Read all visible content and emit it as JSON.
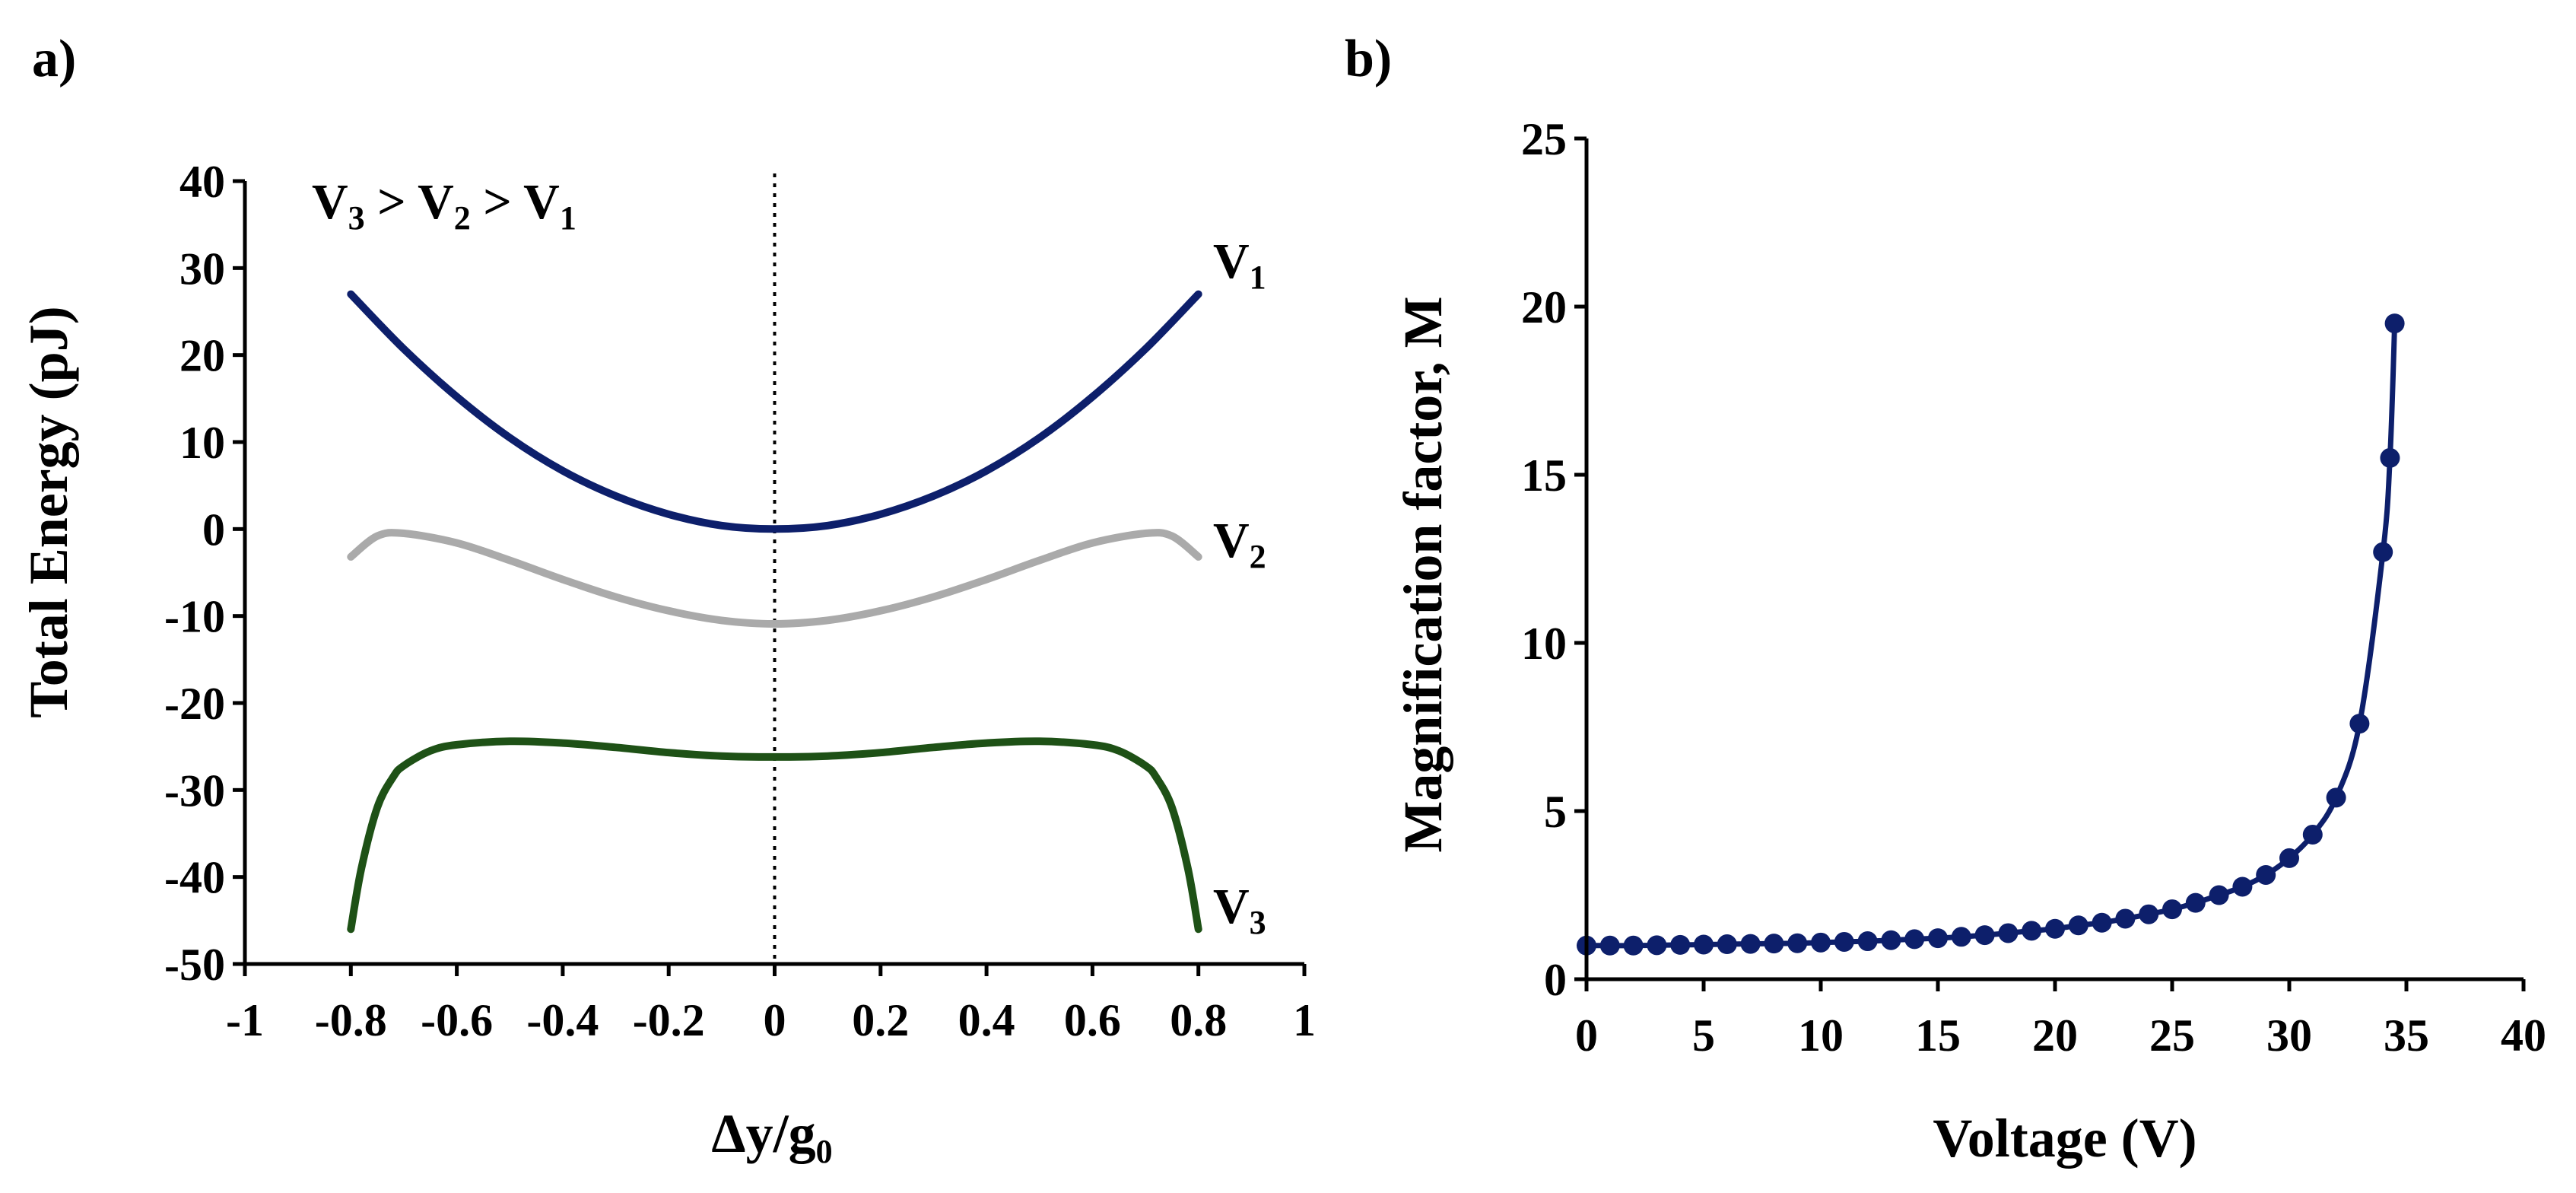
{
  "chart_data": [
    {
      "panel": "a)",
      "type": "line",
      "xlabel": "Δy/g",
      "xlabel_sub": "0",
      "ylabel": "Total Energy (pJ)",
      "xlim": [
        -1,
        1
      ],
      "ylim": [
        -50,
        40
      ],
      "x_ticks": [
        -1,
        -0.8,
        -0.6,
        -0.4,
        -0.2,
        0,
        0.2,
        0.4,
        0.6,
        0.8,
        1
      ],
      "x_tick_labels": [
        "-1",
        "-0.8",
        "-0.6",
        "-0.4",
        "-0.2",
        "0",
        "0.2",
        "0.4",
        "0.6",
        "0.8",
        "1"
      ],
      "y_ticks": [
        -50,
        -40,
        -30,
        -20,
        -10,
        0,
        10,
        20,
        30,
        40
      ],
      "y_tick_labels": [
        "-50",
        "-40",
        "-30",
        "-20",
        "-10",
        "0",
        "10",
        "20",
        "30",
        "40"
      ],
      "reference_line_x": 0,
      "annotation": {
        "parts": [
          {
            "text": "V",
            "sub": "3"
          },
          {
            "text": " > V",
            "sub": "2"
          },
          {
            "text": " > V",
            "sub": "1"
          }
        ]
      },
      "series": [
        {
          "name": "V1",
          "label": "V",
          "label_sub": "1",
          "color": "#0d1f6b",
          "x": [
            -0.8,
            -0.7,
            -0.6,
            -0.5,
            -0.4,
            -0.3,
            -0.2,
            -0.1,
            0,
            0.1,
            0.2,
            0.3,
            0.4,
            0.5,
            0.6,
            0.7,
            0.8
          ],
          "y": [
            27,
            20.7,
            15.2,
            10.5,
            6.7,
            3.8,
            1.7,
            0.4,
            0,
            0.4,
            1.7,
            3.8,
            6.7,
            10.5,
            15.2,
            20.7,
            27
          ]
        },
        {
          "name": "V2",
          "label": "V",
          "label_sub": "2",
          "color": "#aaaaaa",
          "x": [
            -0.8,
            -0.75,
            -0.7,
            -0.6,
            -0.5,
            -0.4,
            -0.3,
            -0.2,
            -0.1,
            0,
            0.1,
            0.2,
            0.3,
            0.4,
            0.5,
            0.6,
            0.7,
            0.75,
            0.8
          ],
          "y": [
            -3.2,
            -0.8,
            -0.5,
            -1.6,
            -3.6,
            -5.8,
            -7.8,
            -9.4,
            -10.5,
            -10.9,
            -10.5,
            -9.4,
            -7.8,
            -5.8,
            -3.6,
            -1.6,
            -0.5,
            -0.8,
            -3.2
          ]
        },
        {
          "name": "V3",
          "label": "V",
          "label_sub": "3",
          "color": "#1e5116",
          "x": [
            -0.8,
            -0.78,
            -0.75,
            -0.72,
            -0.7,
            -0.65,
            -0.6,
            -0.5,
            -0.4,
            -0.3,
            -0.2,
            -0.1,
            0,
            0.1,
            0.2,
            0.3,
            0.4,
            0.5,
            0.6,
            0.65,
            0.7,
            0.72,
            0.75,
            0.78,
            0.8
          ],
          "y": [
            -46,
            -39,
            -32,
            -28.5,
            -27.2,
            -25.5,
            -24.8,
            -24.4,
            -24.6,
            -25.1,
            -25.7,
            -26.1,
            -26.2,
            -26.1,
            -25.7,
            -25.1,
            -24.6,
            -24.4,
            -24.8,
            -25.5,
            -27.2,
            -28.5,
            -32,
            -39,
            -46
          ]
        }
      ]
    },
    {
      "panel": "b)",
      "type": "scatter",
      "xlabel": "Voltage (V)",
      "ylabel": "Magnification factor, M",
      "xlim": [
        0,
        40
      ],
      "ylim": [
        0,
        25
      ],
      "x_ticks": [
        0,
        5,
        10,
        15,
        20,
        25,
        30,
        35,
        40
      ],
      "x_tick_labels": [
        "0",
        "5",
        "10",
        "15",
        "20",
        "25",
        "30",
        "35",
        "40"
      ],
      "y_ticks": [
        0,
        5,
        10,
        15,
        20,
        25
      ],
      "y_tick_labels": [
        "0",
        "5",
        "10",
        "15",
        "20",
        "25"
      ],
      "series": [
        {
          "name": "M",
          "color": "#0d1f6b",
          "x": [
            0,
            1,
            2,
            3,
            4,
            5,
            6,
            7,
            8,
            9,
            10,
            11,
            12,
            13,
            14,
            15,
            16,
            17,
            18,
            19,
            20,
            21,
            22,
            23,
            24,
            25,
            26,
            27,
            28,
            29,
            30,
            31,
            32,
            33,
            34,
            34.3,
            34.5
          ],
          "y": [
            1.0,
            1.0,
            1.0,
            1.01,
            1.02,
            1.03,
            1.04,
            1.05,
            1.06,
            1.07,
            1.09,
            1.11,
            1.13,
            1.16,
            1.19,
            1.22,
            1.26,
            1.31,
            1.37,
            1.44,
            1.5,
            1.6,
            1.68,
            1.8,
            1.93,
            2.08,
            2.27,
            2.5,
            2.75,
            3.1,
            3.6,
            4.3,
            5.4,
            7.6,
            12.7,
            15.5,
            19.5
          ]
        }
      ]
    }
  ]
}
